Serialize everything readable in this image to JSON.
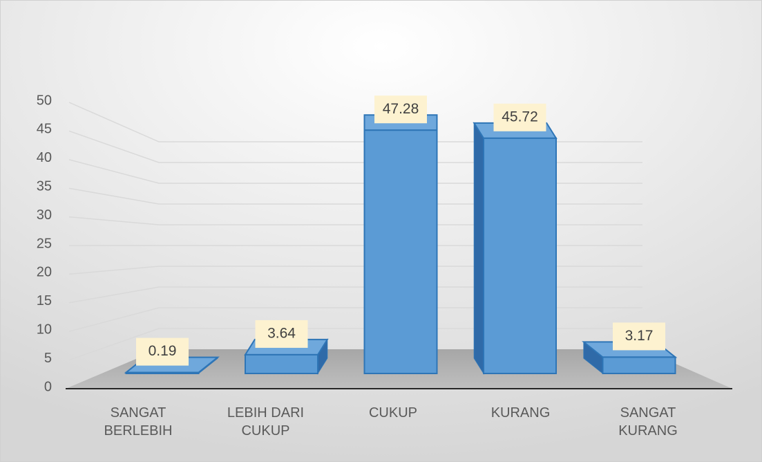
{
  "chart_data": {
    "type": "bar3d",
    "categories": [
      "SANGAT BERLEBIH",
      "LEBIH DARI CUKUP",
      "CUKUP",
      "KURANG",
      "SANGAT KURANG"
    ],
    "values": [
      0.19,
      3.64,
      47.28,
      45.72,
      3.17
    ],
    "value_labels": [
      "0.19",
      "3.64",
      "47.28",
      "45.72",
      "3.17"
    ],
    "color": "#5b9bd5",
    "ylim": [
      0,
      50
    ],
    "yticks": [
      0,
      5,
      10,
      15,
      20,
      25,
      30,
      35,
      40,
      45,
      50
    ],
    "grid": true
  }
}
